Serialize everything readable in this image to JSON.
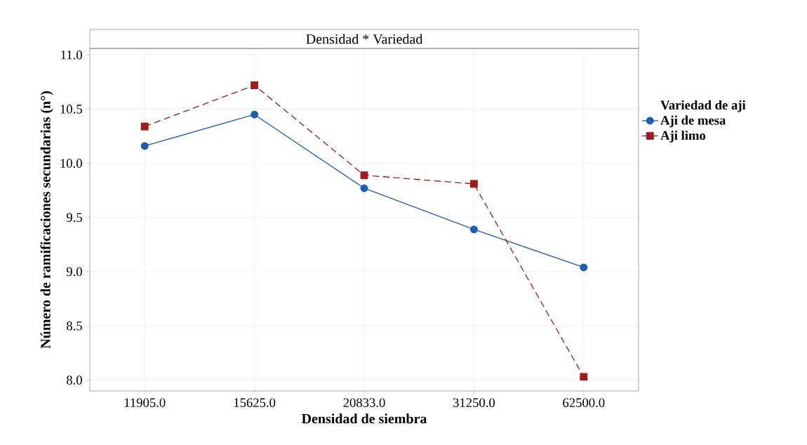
{
  "chart_data": {
    "type": "line",
    "title": "Densidad * Variedad",
    "xlabel": "Densidad de siembra",
    "ylabel": "Número de ramificaciones secundarias (n°)",
    "legend_title": "Variedad de aji",
    "categories": [
      "11905.0",
      "15625.0",
      "20833.0",
      "31250.0",
      "62500.0"
    ],
    "series": [
      {
        "name": "Aji de mesa",
        "color": "#1a5fb4",
        "marker": "circle",
        "line_style": "solid",
        "values": [
          10.16,
          10.45,
          9.77,
          9.39,
          9.04
        ]
      },
      {
        "name": "Aji limo",
        "color": "#a01c1c",
        "marker": "square",
        "line_style": "dashed",
        "values": [
          10.34,
          10.72,
          9.89,
          9.81,
          8.03
        ]
      }
    ],
    "ylim": [
      7.9,
      11.06
    ],
    "yticks": [
      {
        "value": 8.0,
        "label": "8.0"
      },
      {
        "value": 8.5,
        "label": "8.5"
      },
      {
        "value": 9.0,
        "label": "9.0"
      },
      {
        "value": 9.5,
        "label": "9.5"
      },
      {
        "value": 10.0,
        "label": "10.0"
      },
      {
        "value": 10.5,
        "label": "10.5"
      },
      {
        "value": 11.0,
        "label": "11.0"
      }
    ],
    "grid": true,
    "legend": "right"
  }
}
